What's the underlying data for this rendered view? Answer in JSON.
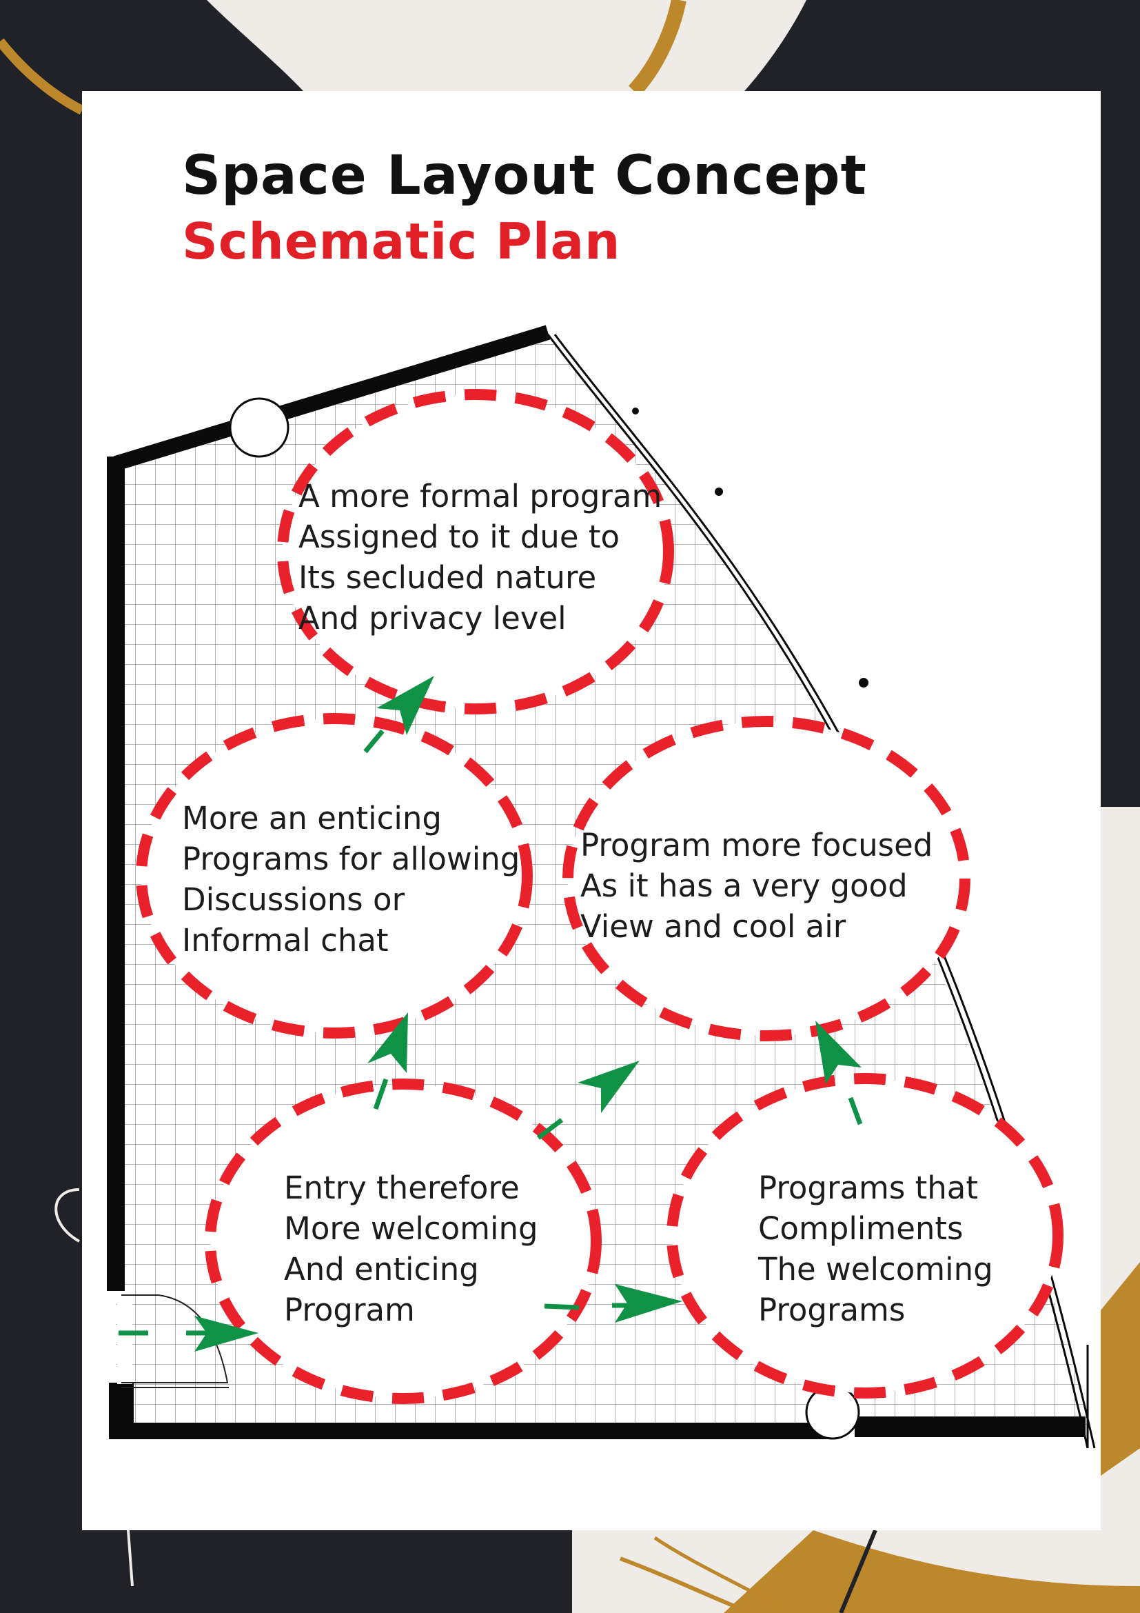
{
  "title": "Space Layout Concept",
  "subtitle": "Schematic Plan",
  "colors": {
    "page_background": "#202227",
    "sheet": "#ffffff",
    "title": "#111111",
    "subtitle": "#e11f26",
    "zone_outline": "#e8212a",
    "flow_arrow": "#0f9246",
    "wall": "#0a0a0a",
    "grid": "#8a8a8a",
    "accent_gold": "#bd872b",
    "accent_cream": "#efebe6"
  },
  "zones": {
    "formal": [
      "A more formal program",
      "Assigned to it due to",
      "Its secluded nature",
      "And privacy level"
    ],
    "informal": [
      "More an enticing",
      "Programs for allowing",
      "Discussions or",
      "Informal chat"
    ],
    "focused": [
      "Program more focused",
      "As it has a very good",
      "View and cool air"
    ],
    "entry": [
      "Entry therefore",
      "More welcoming",
      "And enticing",
      "Program"
    ],
    "complement": [
      "Programs that",
      "Compliments",
      "The welcoming",
      "Programs"
    ]
  }
}
